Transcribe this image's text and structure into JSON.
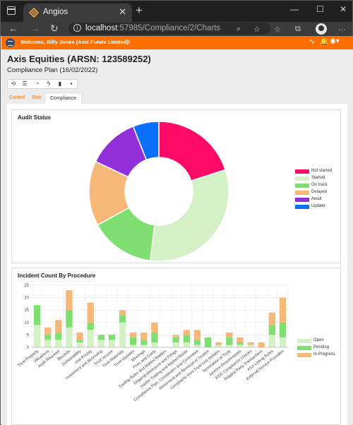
{
  "browser": {
    "tab_title": "Angios",
    "url_host": "localhost",
    "url_rest": ":57985/Compliance/2/Charts"
  },
  "app": {
    "welcome": "Welcome, Billy Jones (Axis Funds Limited)!",
    "title": "Axis Equities (ARSN: 123589252)",
    "subtitle": "Compliance Plan (16/02/2022)",
    "tabs": [
      "Control",
      "Risk",
      "Compliance"
    ],
    "active_tab": "Compliance",
    "accent": "#ff6f00"
  },
  "charts": {
    "audit_title": "Audit Status",
    "incident_title": "Incident Count By Procedure"
  },
  "chart_data": [
    {
      "type": "pie",
      "title": "Audit Status",
      "labels": [
        "Not started",
        "Started",
        "On track",
        "Delayed",
        "Await",
        "Update"
      ],
      "values": [
        20,
        32,
        15,
        15,
        12,
        6
      ],
      "colors": [
        "#ff0a67",
        "#d3f1c4",
        "#7fdf72",
        "#f6b879",
        "#9130d8",
        "#0b6ffa"
      ],
      "legend": "right"
    },
    {
      "type": "bar",
      "stacked": true,
      "title": "Incident Count By Procedure",
      "ylim": [
        0,
        25
      ],
      "yticks": [
        0,
        5,
        10,
        15,
        20,
        25
      ],
      "categories": [
        "Trust Property",
        "Valuations",
        "Audit Required",
        "Records",
        "Sustainability",
        "Unit Pricing",
        "Investment and Borrowing",
        "Trust Income",
        "Trust Materials",
        "Trust Updates",
        "Meetings",
        "Fees and Costs",
        "Trading Rules and Market Matters",
        "Ongoing disclosure and Filings",
        "Insider Trading and Market Abuse",
        "Compliance Plan, Constitution and Committee",
        "Retirement and Removal of Trustee",
        "Complaints from Trust Unit Holders",
        "Termination of Trust",
        "Licence Requirements",
        "ASIC Compliance Checks",
        "Related Party Transactions",
        "ASX Listing Rules",
        "External Service Providers"
      ],
      "series": [
        {
          "name": "Open",
          "color": "#d3f1c4",
          "values": [
            9,
            3,
            3,
            8,
            2,
            7,
            3,
            3,
            10,
            1,
            1,
            2,
            0,
            2,
            2,
            1,
            0,
            1,
            1,
            1,
            1,
            0,
            5,
            4
          ]
        },
        {
          "name": "Pending",
          "color": "#7fdf72",
          "values": [
            8,
            2,
            3,
            7,
            1,
            3,
            2,
            2,
            3,
            3,
            2,
            4,
            0,
            2,
            3,
            2,
            4,
            0,
            3,
            1,
            0,
            0,
            4,
            6
          ]
        },
        {
          "name": "In Progress",
          "color": "#f6b879",
          "values": [
            0,
            3,
            5,
            8,
            3,
            8,
            0,
            0,
            2,
            2,
            3,
            4,
            0,
            1,
            2,
            4,
            0,
            1,
            2,
            2,
            1,
            2,
            5,
            10
          ]
        }
      ],
      "legend": "right"
    }
  ]
}
